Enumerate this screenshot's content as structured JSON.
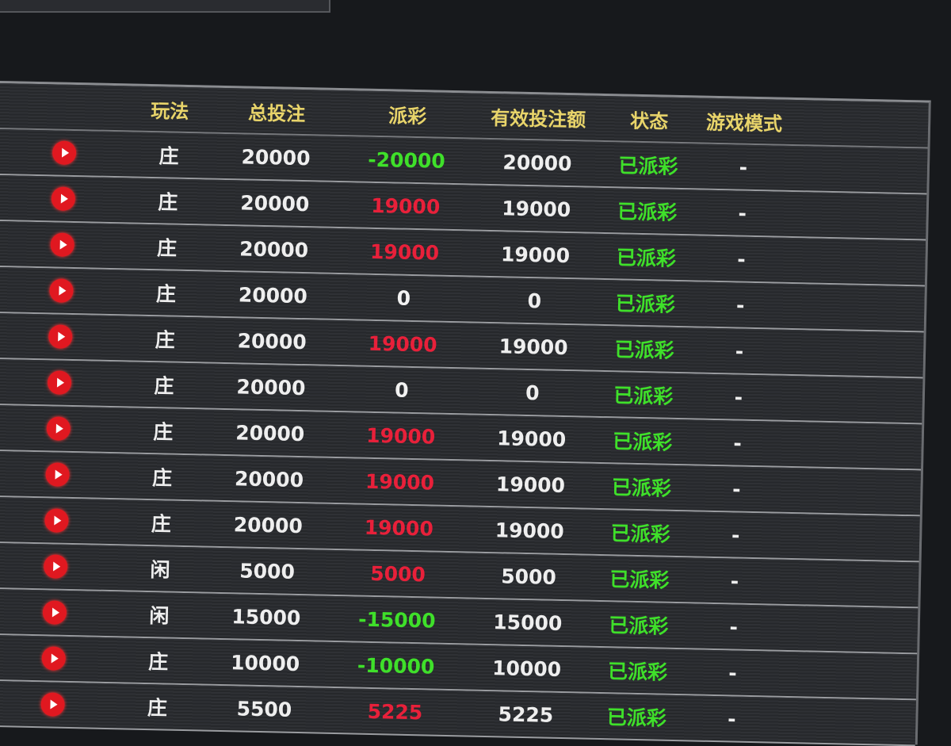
{
  "headers": {
    "play_type": "玩法",
    "total_bet": "总投注",
    "payout": "派彩",
    "valid_bet": "有效投注额",
    "status": "状态",
    "game_mode": "游戏模式"
  },
  "colors": {
    "header": "#e8d46a",
    "positive": "#e8203a",
    "negative": "#3fe02a",
    "status": "#3fe02a",
    "play_button": "#e01820"
  },
  "rows": [
    {
      "play_type": "庄",
      "total_bet": "20000",
      "payout": "-20000",
      "payout_color": "green",
      "valid_bet": "20000",
      "status": "已派彩",
      "game_mode": "-"
    },
    {
      "play_type": "庄",
      "total_bet": "20000",
      "payout": "19000",
      "payout_color": "red",
      "valid_bet": "19000",
      "status": "已派彩",
      "game_mode": "-"
    },
    {
      "play_type": "庄",
      "total_bet": "20000",
      "payout": "19000",
      "payout_color": "red",
      "valid_bet": "19000",
      "status": "已派彩",
      "game_mode": "-"
    },
    {
      "play_type": "庄",
      "total_bet": "20000",
      "payout": "0",
      "payout_color": "white",
      "valid_bet": "0",
      "status": "已派彩",
      "game_mode": "-"
    },
    {
      "play_type": "庄",
      "total_bet": "20000",
      "payout": "19000",
      "payout_color": "red",
      "valid_bet": "19000",
      "status": "已派彩",
      "game_mode": "-"
    },
    {
      "play_type": "庄",
      "total_bet": "20000",
      "payout": "0",
      "payout_color": "white",
      "valid_bet": "0",
      "status": "已派彩",
      "game_mode": "-"
    },
    {
      "play_type": "庄",
      "total_bet": "20000",
      "payout": "19000",
      "payout_color": "red",
      "valid_bet": "19000",
      "status": "已派彩",
      "game_mode": "-"
    },
    {
      "play_type": "庄",
      "total_bet": "20000",
      "payout": "19000",
      "payout_color": "red",
      "valid_bet": "19000",
      "status": "已派彩",
      "game_mode": "-"
    },
    {
      "play_type": "庄",
      "total_bet": "20000",
      "payout": "19000",
      "payout_color": "red",
      "valid_bet": "19000",
      "status": "已派彩",
      "game_mode": "-"
    },
    {
      "play_type": "闲",
      "total_bet": "5000",
      "payout": "5000",
      "payout_color": "red",
      "valid_bet": "5000",
      "status": "已派彩",
      "game_mode": "-"
    },
    {
      "play_type": "闲",
      "total_bet": "15000",
      "payout": "-15000",
      "payout_color": "green",
      "valid_bet": "15000",
      "status": "已派彩",
      "game_mode": "-"
    },
    {
      "play_type": "庄",
      "total_bet": "10000",
      "payout": "-10000",
      "payout_color": "green",
      "valid_bet": "10000",
      "status": "已派彩",
      "game_mode": "-"
    },
    {
      "play_type": "庄",
      "total_bet": "5500",
      "payout": "5225",
      "payout_color": "red",
      "valid_bet": "5225",
      "status": "已派彩",
      "game_mode": "-"
    }
  ]
}
